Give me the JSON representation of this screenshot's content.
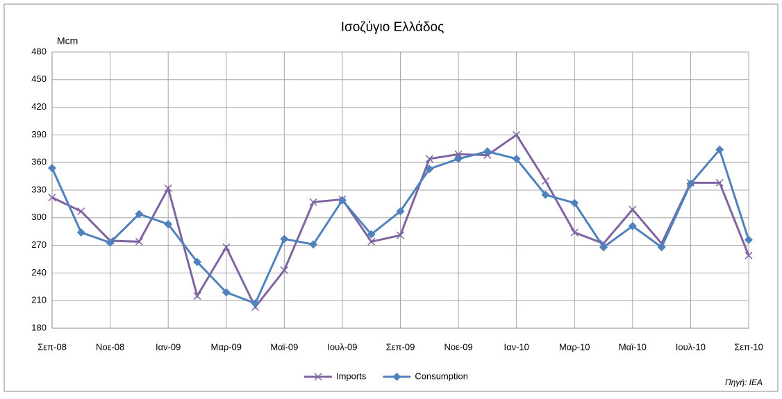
{
  "chart_data": {
    "type": "line",
    "title": "Ισοζύγιο Ελλάδος",
    "y_label": "Mcm",
    "source": "Πηγή: IEA",
    "categories": [
      "Σεπ-08",
      null,
      "Νοε-08",
      null,
      "Ιαν-09",
      null,
      "Μαρ-09",
      null,
      "Μαϊ-09",
      null,
      "Ιουλ-09",
      null,
      "Σεπ-09",
      null,
      "Νοε-09",
      null,
      "Ιαν-10",
      null,
      "Μαρ-10",
      null,
      "Μαϊ-10",
      null,
      "Ιουλ-10",
      null,
      "Σεπ-10"
    ],
    "series": [
      {
        "name": "Imports",
        "color": "#8064a2",
        "marker": "x",
        "values": [
          322,
          307,
          275,
          274,
          332,
          215,
          268,
          203,
          243,
          317,
          320,
          274,
          281,
          364,
          369,
          368,
          390,
          340,
          284,
          272,
          309,
          272,
          338,
          338,
          259
        ]
      },
      {
        "name": "Consumption",
        "color": "#4f81bd",
        "marker": "diamond",
        "values": [
          354,
          284,
          273,
          304,
          293,
          252,
          219,
          207,
          277,
          271,
          319,
          282,
          307,
          353,
          364,
          372,
          364,
          325,
          316,
          268,
          291,
          268,
          337,
          374,
          276
        ]
      }
    ],
    "ylim": [
      180,
      480
    ],
    "yticks": [
      180,
      210,
      240,
      270,
      300,
      330,
      360,
      390,
      420,
      450,
      480
    ],
    "grid": true,
    "legend": "bottom"
  }
}
